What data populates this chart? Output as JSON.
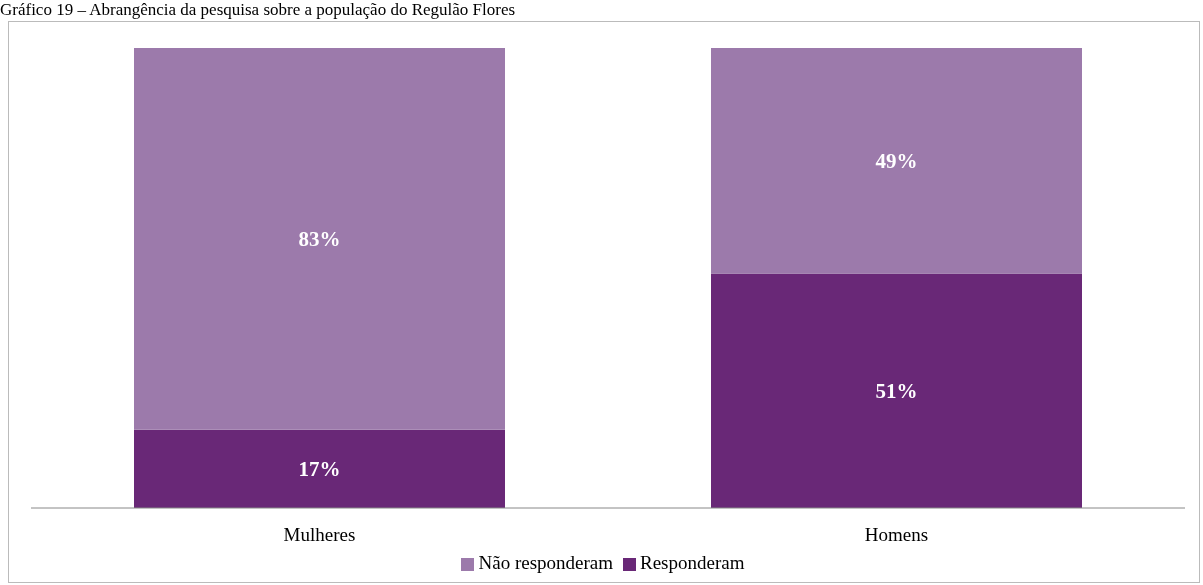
{
  "chart_data": {
    "type": "bar",
    "title": "Gráfico 19 – Abrangência da pesquisa sobre a população do Regulão Flores",
    "categories": [
      "Mulheres",
      "Homens"
    ],
    "stacked": true,
    "legend": "bottom",
    "grid": false,
    "series": [
      {
        "name": "Responderam",
        "color": "#692877",
        "values": [
          17,
          51
        ],
        "value_labels": [
          "17%",
          "51%"
        ]
      },
      {
        "name": "Não responderam",
        "color": "#9c7aab",
        "values": [
          83,
          49
        ],
        "value_labels": [
          "83%",
          "49%"
        ]
      }
    ]
  }
}
